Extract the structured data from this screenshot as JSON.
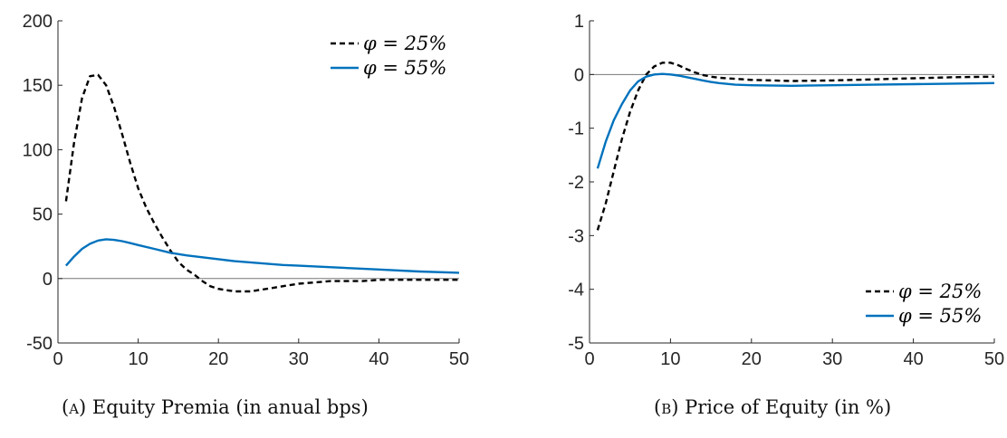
{
  "chart_data": [
    {
      "type": "line",
      "title": "",
      "xlabel": "",
      "ylabel": "",
      "xlim": [
        0,
        50
      ],
      "ylim": [
        -50,
        200
      ],
      "xticks": [
        0,
        10,
        20,
        30,
        40,
        50
      ],
      "yticks": [
        -50,
        0,
        50,
        100,
        150,
        200
      ],
      "xtick_labels": [
        "0",
        "10",
        "20",
        "30",
        "40",
        "50"
      ],
      "ytick_labels": [
        "-50",
        "0",
        "50",
        "100",
        "150",
        "200"
      ],
      "zero_line": true,
      "legend_position": "top-right",
      "series": [
        {
          "name": "φ = 25%",
          "style": "dashed",
          "color": "#000000",
          "x": [
            1,
            2,
            3,
            4,
            5,
            6,
            7,
            8,
            9,
            10,
            11,
            12,
            13,
            14,
            15,
            16,
            17,
            18,
            19,
            20,
            21,
            22,
            23,
            24,
            25,
            26,
            27,
            28,
            29,
            30,
            32,
            34,
            36,
            38,
            40,
            42,
            44,
            46,
            48,
            50
          ],
          "y": [
            60,
            105,
            140,
            157,
            158,
            150,
            133,
            112,
            90,
            70,
            55,
            43,
            32,
            22,
            13,
            7,
            3,
            -2,
            -6,
            -8,
            -9,
            -10,
            -10,
            -10,
            -9,
            -8,
            -7,
            -6,
            -5,
            -4,
            -3,
            -2,
            -2,
            -2,
            -1,
            -1,
            -1,
            -1,
            -1,
            -1
          ]
        },
        {
          "name": "φ = 55%",
          "style": "solid",
          "color": "#0072BD",
          "x": [
            1,
            2,
            3,
            4,
            5,
            6,
            7,
            8,
            9,
            10,
            12,
            14,
            16,
            18,
            20,
            22,
            25,
            28,
            30,
            35,
            40,
            45,
            50
          ],
          "y": [
            10,
            17,
            23,
            27,
            29.5,
            30.5,
            30,
            29,
            27.5,
            26,
            23,
            20,
            18,
            16.5,
            15,
            13.5,
            12,
            10.5,
            10,
            8.5,
            7,
            5.5,
            4.5
          ]
        }
      ],
      "caption_label": "(a)",
      "caption_text": "Equity Premia (in anual bps)"
    },
    {
      "type": "line",
      "title": "",
      "xlabel": "",
      "ylabel": "",
      "xlim": [
        0,
        50
      ],
      "ylim": [
        -5,
        1
      ],
      "xticks": [
        0,
        10,
        20,
        30,
        40,
        50
      ],
      "yticks": [
        -5,
        -4,
        -3,
        -2,
        -1,
        0,
        1
      ],
      "xtick_labels": [
        "0",
        "10",
        "20",
        "30",
        "40",
        "50"
      ],
      "ytick_labels": [
        "-5",
        "-4",
        "-3",
        "-2",
        "-1",
        "0",
        "1"
      ],
      "zero_line": true,
      "legend_position": "bottom-right",
      "series": [
        {
          "name": "φ = 25%",
          "style": "dashed",
          "color": "#000000",
          "x": [
            1,
            2,
            3,
            4,
            5,
            6,
            7,
            8,
            9,
            10,
            11,
            12,
            13,
            14,
            15,
            16,
            18,
            20,
            25,
            30,
            35,
            40,
            45,
            50
          ],
          "y": [
            -2.9,
            -2.4,
            -1.8,
            -1.2,
            -0.7,
            -0.3,
            0.0,
            0.15,
            0.22,
            0.22,
            0.17,
            0.1,
            0.04,
            -0.01,
            -0.04,
            -0.06,
            -0.08,
            -0.1,
            -0.12,
            -0.11,
            -0.09,
            -0.07,
            -0.05,
            -0.04
          ]
        },
        {
          "name": "φ = 55%",
          "style": "solid",
          "color": "#0072BD",
          "x": [
            1,
            2,
            3,
            4,
            5,
            6,
            7,
            8,
            9,
            10,
            11,
            12,
            13,
            14,
            15,
            16,
            18,
            20,
            25,
            30,
            35,
            40,
            45,
            50
          ],
          "y": [
            -1.75,
            -1.25,
            -0.85,
            -0.55,
            -0.3,
            -0.13,
            -0.04,
            0.0,
            0.01,
            0.0,
            -0.02,
            -0.05,
            -0.08,
            -0.11,
            -0.14,
            -0.16,
            -0.19,
            -0.2,
            -0.21,
            -0.2,
            -0.19,
            -0.18,
            -0.17,
            -0.16
          ]
        }
      ],
      "caption_label": "(b)",
      "caption_text": "Price of Equity (in %)"
    }
  ]
}
